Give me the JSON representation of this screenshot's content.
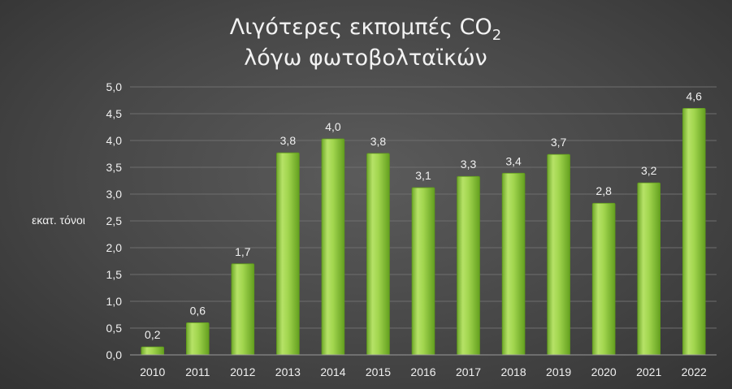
{
  "chart_data": {
    "type": "bar",
    "title_line1": "Λιγότερες εκπομπές CO",
    "title_sub": "2",
    "title_line2": "λόγω φωτοβολταϊκών",
    "ylabel": "εκατ. τόνοι",
    "xlabel": "",
    "ylim": [
      0,
      5
    ],
    "yticks": [
      "0,0",
      "0,5",
      "1,0",
      "1,5",
      "2,0",
      "2,5",
      "3,0",
      "3,5",
      "4,0",
      "4,5",
      "5,0"
    ],
    "categories": [
      "2010",
      "2011",
      "2012",
      "2013",
      "2014",
      "2015",
      "2016",
      "2017",
      "2018",
      "2019",
      "2020",
      "2021",
      "2022"
    ],
    "values": [
      0.15,
      0.6,
      1.7,
      3.77,
      4.03,
      3.76,
      3.12,
      3.33,
      3.39,
      3.74,
      2.83,
      3.21,
      4.6
    ],
    "value_labels": [
      "0,2",
      "0,6",
      "1,7",
      "3,8",
      "4,0",
      "3,8",
      "3,1",
      "3,3",
      "3,4",
      "3,7",
      "2,8",
      "3,2",
      "4,6"
    ],
    "grid": true,
    "legend": "none",
    "bar_color": "#8cc63f",
    "bar_color_light": "#c8ec7e",
    "bar_color_dark": "#5f9a1c"
  }
}
